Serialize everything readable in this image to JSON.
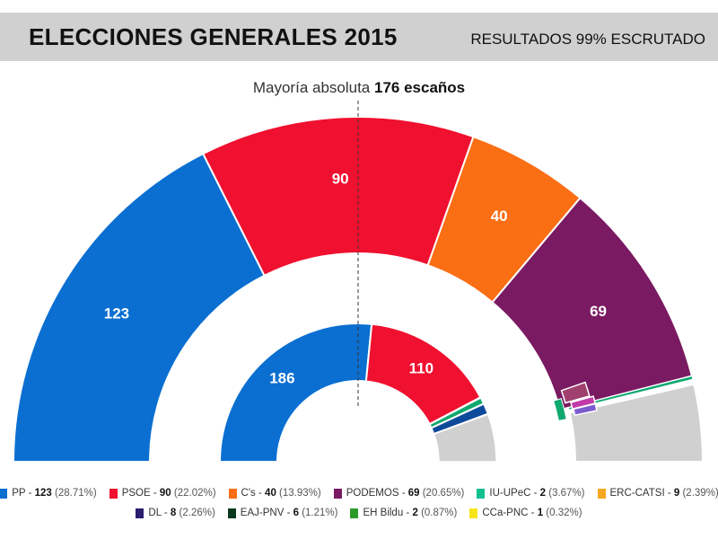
{
  "header": {
    "title": "ELECCIONES GENERALES 2015",
    "subtitle": "RESULTADOS 99% ESCRUTADO"
  },
  "majority": {
    "prefix": "Mayoría absoluta",
    "value": "176 escaños"
  },
  "chart_data": [
    {
      "type": "semicircle-parliament",
      "ring": "outer",
      "total": 350,
      "majority": 176,
      "series": [
        {
          "name": "PP",
          "value": 123,
          "color": "#0a6fd1",
          "label": "123"
        },
        {
          "name": "PSOE",
          "value": 90,
          "color": "#f0102f",
          "label": "90"
        },
        {
          "name": "C's",
          "value": 40,
          "color": "#fa6e14",
          "label": "40"
        },
        {
          "name": "PODEMOS",
          "value": 69,
          "color": "#7a1a62",
          "label": "69"
        },
        {
          "name": "IU-UPeC",
          "value": 2,
          "color": "#10a870"
        },
        {
          "name": "ERC-CATSI",
          "value": 9,
          "color": "#f2a818"
        },
        {
          "name": "DL",
          "value": 8,
          "color": "#2a1c6e"
        },
        {
          "name": "EAJ-PNV",
          "value": 6,
          "color": "#0a5428"
        },
        {
          "name": "EH Bildu",
          "value": 2,
          "color": "#2eaa2e"
        },
        {
          "name": "CCa-PNC",
          "value": 1,
          "color": "#f7e01a"
        }
      ]
    },
    {
      "type": "semicircle-bloc",
      "ring": "inner",
      "series": [
        {
          "value": 186,
          "color": "#0a6fd1",
          "label": "186"
        },
        {
          "value": 110,
          "color": "#f0102f",
          "label": "110"
        }
      ]
    }
  ],
  "legend": [
    {
      "party": "PP",
      "seats": "123",
      "pct": "(28.71%)",
      "color": "#0a6fd1"
    },
    {
      "party": "PSOE",
      "seats": "90",
      "pct": "(22.02%)",
      "color": "#f0102f"
    },
    {
      "party": "C's",
      "seats": "40",
      "pct": "(13.93%)",
      "color": "#fa6e14"
    },
    {
      "party": "PODEMOS",
      "seats": "69",
      "pct": "(20.65%)",
      "color": "#7a1a62"
    },
    {
      "party": "IU-UPeC",
      "seats": "2",
      "pct": "(3.67%)",
      "color": "#10c090"
    },
    {
      "party": "ERC-CATSI",
      "seats": "9",
      "pct": "(2.39%)",
      "color": "#f5a820"
    },
    {
      "party": "DL",
      "seats": "8",
      "pct": "(2.26%)",
      "color": "#2a1c6e"
    },
    {
      "party": "EAJ-PNV",
      "seats": "6",
      "pct": "(1.21%)",
      "color": "#0c3a1e"
    },
    {
      "party": "EH Bildu",
      "seats": "2",
      "pct": "(0.87%)",
      "color": "#2a9a2a"
    },
    {
      "party": "CCa-PNC",
      "seats": "1",
      "pct": "(0.32%)",
      "color": "#f7e51a"
    }
  ]
}
